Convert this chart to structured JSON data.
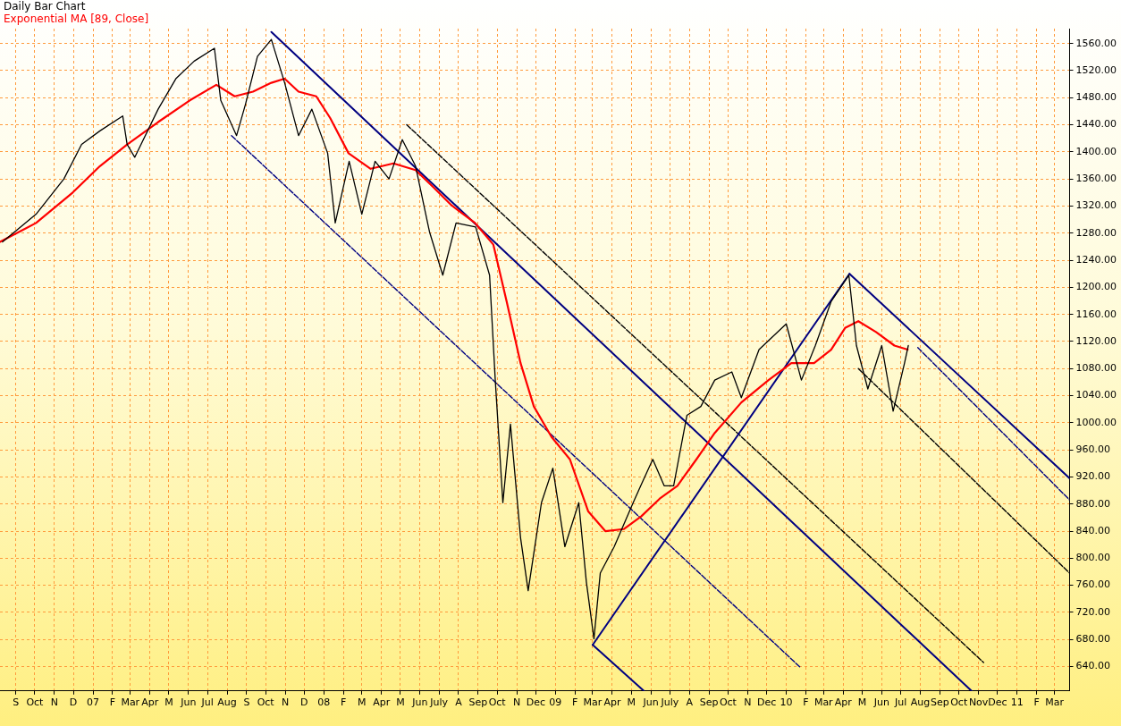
{
  "chart_data": {
    "type": "line",
    "legend": "top left",
    "grid": true,
    "marker": "none",
    "line_style": "solid",
    "xlim": [
      "2006-08-07",
      "2011-03-25"
    ],
    "xticks": [
      {
        "value": "2006-09-01",
        "label": "S"
      },
      {
        "value": "2006-10-01",
        "label": "Oct"
      },
      {
        "value": "2006-11-01",
        "label": "N"
      },
      {
        "value": "2006-12-01",
        "label": "D"
      },
      {
        "value": "2007-01-01",
        "label": "07"
      },
      {
        "value": "2007-02-01",
        "label": "F"
      },
      {
        "value": "2007-03-01",
        "label": "Mar"
      },
      {
        "value": "2007-04-01",
        "label": "Apr"
      },
      {
        "value": "2007-05-01",
        "label": "M"
      },
      {
        "value": "2007-06-01",
        "label": "Jun"
      },
      {
        "value": "2007-07-01",
        "label": "Jul"
      },
      {
        "value": "2007-08-01",
        "label": "Aug"
      },
      {
        "value": "2007-09-01",
        "label": "S"
      },
      {
        "value": "2007-10-01",
        "label": "Oct"
      },
      {
        "value": "2007-11-01",
        "label": "N"
      },
      {
        "value": "2007-12-01",
        "label": "D"
      },
      {
        "value": "2008-01-01",
        "label": "08"
      },
      {
        "value": "2008-02-01",
        "label": "F"
      },
      {
        "value": "2008-03-01",
        "label": "M"
      },
      {
        "value": "2008-04-01",
        "label": "Apr"
      },
      {
        "value": "2008-05-01",
        "label": "M"
      },
      {
        "value": "2008-06-01",
        "label": "Jun"
      },
      {
        "value": "2008-07-01",
        "label": "July"
      },
      {
        "value": "2008-08-01",
        "label": "A"
      },
      {
        "value": "2008-09-01",
        "label": "Sep"
      },
      {
        "value": "2008-10-01",
        "label": "Oct"
      },
      {
        "value": "2008-11-01",
        "label": "N"
      },
      {
        "value": "2008-12-01",
        "label": "Dec"
      },
      {
        "value": "2009-01-01",
        "label": "09"
      },
      {
        "value": "2009-02-01",
        "label": "F"
      },
      {
        "value": "2009-03-01",
        "label": "Mar"
      },
      {
        "value": "2009-04-01",
        "label": "Apr"
      },
      {
        "value": "2009-05-01",
        "label": "M"
      },
      {
        "value": "2009-06-01",
        "label": "Jun"
      },
      {
        "value": "2009-07-01",
        "label": "July"
      },
      {
        "value": "2009-08-01",
        "label": "A"
      },
      {
        "value": "2009-09-01",
        "label": "Sep"
      },
      {
        "value": "2009-10-01",
        "label": "Oct"
      },
      {
        "value": "2009-11-01",
        "label": "N"
      },
      {
        "value": "2009-12-01",
        "label": "Dec"
      },
      {
        "value": "2010-01-01",
        "label": "10"
      },
      {
        "value": "2010-02-01",
        "label": "F"
      },
      {
        "value": "2010-03-01",
        "label": "Mar"
      },
      {
        "value": "2010-04-01",
        "label": "Apr"
      },
      {
        "value": "2010-05-01",
        "label": "M"
      },
      {
        "value": "2010-06-01",
        "label": "Jun"
      },
      {
        "value": "2010-07-01",
        "label": "Jul"
      },
      {
        "value": "2010-08-01",
        "label": "Aug"
      },
      {
        "value": "2010-09-01",
        "label": "Sep"
      },
      {
        "value": "2010-10-01",
        "label": "Oct"
      },
      {
        "value": "2010-11-01",
        "label": "Nov"
      },
      {
        "value": "2010-12-01",
        "label": "Dec"
      },
      {
        "value": "2011-01-01",
        "label": "11"
      },
      {
        "value": "2011-02-01",
        "label": "F"
      },
      {
        "value": "2011-03-01",
        "label": "Mar"
      }
    ],
    "ylim": [
      604,
      1582
    ],
    "yticks": [
      {
        "value": 640,
        "label": "640.00"
      },
      {
        "value": 680,
        "label": "680.00"
      },
      {
        "value": 720,
        "label": "720.00"
      },
      {
        "value": 760,
        "label": "760.00"
      },
      {
        "value": 800,
        "label": "800.00"
      },
      {
        "value": 840,
        "label": "840.00"
      },
      {
        "value": 880,
        "label": "880.00"
      },
      {
        "value": 920,
        "label": "920.00"
      },
      {
        "value": 960,
        "label": "960.00"
      },
      {
        "value": 1000,
        "label": "1000.00"
      },
      {
        "value": 1040,
        "label": "1040.00"
      },
      {
        "value": 1080,
        "label": "1080.00"
      },
      {
        "value": 1120,
        "label": "1120.00"
      },
      {
        "value": 1160,
        "label": "1160.00"
      },
      {
        "value": 1200,
        "label": "1200.00"
      },
      {
        "value": 1240,
        "label": "1240.00"
      },
      {
        "value": 1280,
        "label": "1280.00"
      },
      {
        "value": 1320,
        "label": "1320.00"
      },
      {
        "value": 1360,
        "label": "1360.00"
      },
      {
        "value": 1400,
        "label": "1400.00"
      },
      {
        "value": 1440,
        "label": "1440.00"
      },
      {
        "value": 1480,
        "label": "1480.00"
      },
      {
        "value": 1520,
        "label": "1520.00"
      },
      {
        "value": 1560,
        "label": "1560.00"
      }
    ],
    "series": [
      {
        "name": "Daily Bar Chart",
        "color": "#000000",
        "x": [
          "2006-08-11",
          "2006-10-03",
          "2006-11-16",
          "2006-12-14",
          "2007-01-12",
          "2007-02-17",
          "2007-02-24",
          "2007-03-08",
          "2007-04-14",
          "2007-05-12",
          "2007-06-10",
          "2007-07-12",
          "2007-07-22",
          "2007-08-16",
          "2007-08-30",
          "2007-09-18",
          "2007-10-10",
          "2007-10-31",
          "2007-11-22",
          "2007-12-13",
          "2008-01-07",
          "2008-01-19",
          "2008-02-10",
          "2008-03-01",
          "2008-03-22",
          "2008-04-13",
          "2008-05-04",
          "2008-05-25",
          "2008-06-16",
          "2008-07-07",
          "2008-07-28",
          "2008-08-28",
          "2008-09-19",
          "2008-09-28",
          "2008-10-10",
          "2008-10-22",
          "2008-11-07",
          "2008-11-19",
          "2008-12-10",
          "2008-12-28",
          "2009-01-16",
          "2009-02-07",
          "2009-02-19",
          "2009-03-03",
          "2009-03-13",
          "2009-04-04",
          "2009-05-04",
          "2009-05-16",
          "2009-06-04",
          "2009-06-22",
          "2009-07-07",
          "2009-07-28",
          "2009-08-19",
          "2009-09-10",
          "2009-10-07",
          "2009-10-22",
          "2009-11-19",
          "2010-01-01",
          "2010-01-25",
          "2010-02-16",
          "2010-03-13",
          "2010-04-10",
          "2010-04-22",
          "2010-05-10",
          "2010-06-01",
          "2010-06-19",
          "2010-07-07",
          "2010-07-13"
        ],
        "values": [
          1267,
          1308,
          1360,
          1411,
          1431,
          1453,
          1411,
          1392,
          1463,
          1508,
          1534,
          1553,
          1476,
          1424,
          1470,
          1541,
          1566,
          1502,
          1424,
          1463,
          1398,
          1295,
          1386,
          1308,
          1386,
          1360,
          1418,
          1379,
          1282,
          1218,
          1295,
          1289,
          1218,
          1063,
          882,
          998,
          830,
          752,
          882,
          933,
          817,
          882,
          765,
          681,
          778,
          817,
          882,
          907,
          946,
          907,
          907,
          1011,
          1024,
          1063,
          1075,
          1037,
          1108,
          1146,
          1063,
          1114,
          1179,
          1218,
          1114,
          1050,
          1114,
          1017,
          1088,
          1114
        ]
      },
      {
        "name": "Exponential MA [89, Close]",
        "color": "#ff0000",
        "x": [
          "2006-08-07",
          "2006-10-03",
          "2006-11-30",
          "2007-01-12",
          "2007-02-24",
          "2007-04-14",
          "2007-06-03",
          "2007-07-15",
          "2007-08-13",
          "2007-09-11",
          "2007-10-10",
          "2007-10-31",
          "2007-11-22",
          "2007-12-20",
          "2008-01-11",
          "2008-02-09",
          "2008-03-15",
          "2008-04-20",
          "2008-05-25",
          "2008-06-23",
          "2008-07-21",
          "2008-08-27",
          "2008-09-25",
          "2008-10-16",
          "2008-11-07",
          "2008-11-28",
          "2008-12-26",
          "2009-01-24",
          "2009-02-22",
          "2009-03-21",
          "2009-04-19",
          "2009-05-17",
          "2009-06-15",
          "2009-07-13",
          "2009-08-12",
          "2009-09-10",
          "2009-10-22",
          "2009-12-04",
          "2010-01-09",
          "2010-02-14",
          "2010-03-13",
          "2010-04-04",
          "2010-04-25",
          "2010-05-23",
          "2010-06-21",
          "2010-07-12"
        ],
        "values": [
          1267,
          1295,
          1340,
          1379,
          1411,
          1444,
          1476,
          1499,
          1482,
          1489,
          1502,
          1508,
          1489,
          1482,
          1450,
          1398,
          1375,
          1383,
          1373,
          1347,
          1321,
          1295,
          1263,
          1179,
          1088,
          1024,
          979,
          946,
          869,
          840,
          843,
          862,
          888,
          907,
          946,
          985,
          1030,
          1063,
          1088,
          1088,
          1108,
          1140,
          1150,
          1134,
          1114,
          1108
        ]
      },
      {
        "color": "#000080",
        "x": [
          "2007-10-10",
          "2010-10-21"
        ],
        "values": [
          1577,
          604
        ]
      },
      {
        "color": "#000080",
        "x": [
          "2009-03-01",
          "2009-05-21"
        ],
        "values": [
          672,
          604
        ]
      },
      {
        "color": "#000080",
        "x": [
          "2009-03-01",
          "2010-04-11"
        ],
        "values": [
          672,
          1220
        ]
      },
      {
        "color": "#000080",
        "x": [
          "2010-04-11",
          "2011-03-25"
        ],
        "values": [
          1220,
          918
        ]
      },
      {
        "color": "#000080",
        "line_style": "dashed",
        "x": [
          "2007-08-08",
          "2010-01-23"
        ],
        "values": [
          1424,
          639
        ]
      },
      {
        "color": "#000000",
        "line_style": "dashed",
        "x": [
          "2008-05-11",
          "2010-11-09"
        ],
        "values": [
          1440,
          646
        ]
      },
      {
        "color": "#000000",
        "line_style": "dashed",
        "x": [
          "2010-04-25",
          "2011-03-25"
        ],
        "values": [
          1080,
          778
        ]
      },
      {
        "color": "#000080",
        "line_style": "dashed",
        "x": [
          "2010-07-28",
          "2011-03-25"
        ],
        "values": [
          1111,
          886
        ]
      }
    ]
  }
}
